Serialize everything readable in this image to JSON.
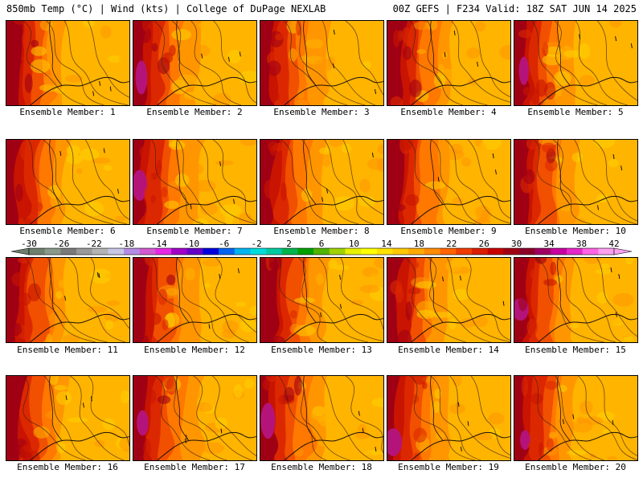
{
  "header": {
    "left": "850mb Temp (°C) | Wind (kts) | College of DuPage NEXLAB",
    "right": "00Z GEFS | F234 Valid: 18Z SAT JUN 14 2025"
  },
  "members": [
    {
      "label": "Ensemble Member: 1",
      "warmth": 0.7
    },
    {
      "label": "Ensemble Member: 2",
      "warmth": 0.9
    },
    {
      "label": "Ensemble Member: 3",
      "warmth": 0.8
    },
    {
      "label": "Ensemble Member: 4",
      "warmth": 0.6
    },
    {
      "label": "Ensemble Member: 5",
      "warmth": 0.85
    },
    {
      "label": "Ensemble Member: 6",
      "warmth": 0.75
    },
    {
      "label": "Ensemble Member: 7",
      "warmth": 0.85
    },
    {
      "label": "Ensemble Member: 8",
      "warmth": 0.8
    },
    {
      "label": "Ensemble Member: 9",
      "warmth": 0.7
    },
    {
      "label": "Ensemble Member: 10",
      "warmth": 0.8
    },
    {
      "label": "Ensemble Member: 11",
      "warmth": 0.7
    },
    {
      "label": "Ensemble Member: 12",
      "warmth": 0.8
    },
    {
      "label": "Ensemble Member: 13",
      "warmth": 0.55
    },
    {
      "label": "Ensemble Member: 14",
      "warmth": 0.8
    },
    {
      "label": "Ensemble Member: 15",
      "warmth": 0.9
    },
    {
      "label": "Ensemble Member: 16",
      "warmth": 0.75
    },
    {
      "label": "Ensemble Member: 17",
      "warmth": 0.9
    },
    {
      "label": "Ensemble Member: 18",
      "warmth": 0.85
    },
    {
      "label": "Ensemble Member: 19",
      "warmth": 0.95
    },
    {
      "label": "Ensemble Member: 20",
      "warmth": 0.85
    }
  ],
  "colorbar": {
    "ticks": [
      "-30",
      "-26",
      "-22",
      "-18",
      "-14",
      "-10",
      "-6",
      "-2",
      "2",
      "6",
      "10",
      "14",
      "18",
      "22",
      "26",
      "30",
      "34",
      "38",
      "42"
    ],
    "colors": [
      "#6e7f6e",
      "#8a9a8a",
      "#7a7a7a",
      "#9a9a9a",
      "#b4b4b4",
      "#c8c8e6",
      "#b48ce6",
      "#d25ad2",
      "#e628e6",
      "#a000c8",
      "#6400c8",
      "#0000dc",
      "#0064f0",
      "#00b4f0",
      "#00dcdc",
      "#00c8a0",
      "#00b450",
      "#00a000",
      "#50b400",
      "#a0d200",
      "#e6f000",
      "#ffff00",
      "#ffe100",
      "#ffc800",
      "#ffaa00",
      "#ff8c00",
      "#ff6400",
      "#f03c00",
      "#dc1e00",
      "#c80000",
      "#a00014",
      "#8c0028",
      "#a00064",
      "#c800a0",
      "#e628c8",
      "#ff64e6",
      "#ffa0f0"
    ],
    "palette_warm": [
      "#ffd200",
      "#ffb400",
      "#ff9600",
      "#ff7800",
      "#f05000",
      "#dc2800",
      "#c81400",
      "#a00014",
      "#8c0028",
      "#b4147a"
    ]
  }
}
